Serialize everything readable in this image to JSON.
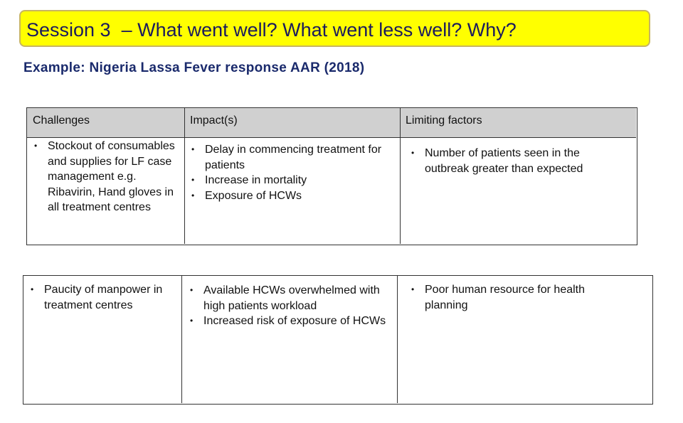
{
  "header": {
    "title": "Session 3  – What went well? What went less well? Why?",
    "subtitle": "Example: Nigeria Lassa Fever response AAR (2018)"
  },
  "table": {
    "headers": [
      "Challenges",
      "Impact(s)",
      "Limiting factors"
    ],
    "rows": [
      [
        [
          "Stockout of consumables and supplies for LF case management e.g. Ribavirin, Hand gloves in all treatment centres"
        ],
        [
          "Delay in commencing treatment for patients",
          "Increase in mortality",
          "Exposure of HCWs"
        ],
        [
          "Number of patients seen in the outbreak greater than expected"
        ]
      ],
      [
        [
          "Paucity of manpower in treatment centres"
        ],
        [
          "Available HCWs overwhelmed with high patients workload",
          "Increased risk of exposure of HCWs"
        ],
        [
          "Poor human resource for health planning"
        ]
      ]
    ]
  }
}
